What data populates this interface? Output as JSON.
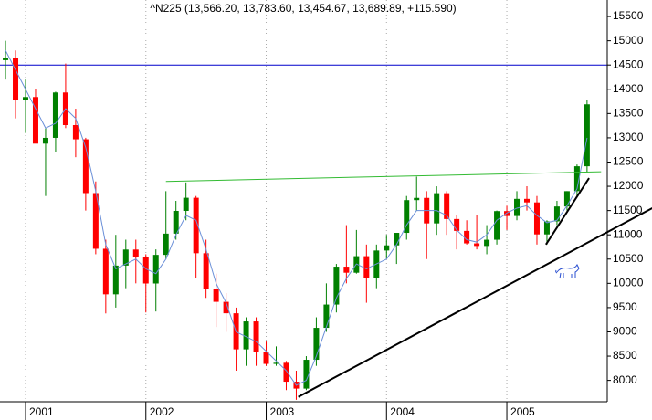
{
  "chart_data": {
    "type": "candlestick",
    "title": "^N225 (13,566.20, 13,783.60, 13,454.67, 13,689.89, +115.590)",
    "categories": [
      null,
      null,
      "2001",
      null,
      null,
      null,
      null,
      null,
      null,
      null,
      null,
      null,
      null,
      null,
      "2002",
      null,
      null,
      null,
      null,
      null,
      null,
      null,
      null,
      null,
      null,
      null,
      "2003",
      null,
      null,
      null,
      null,
      null,
      null,
      null,
      null,
      null,
      null,
      null,
      "2004",
      null,
      null,
      null,
      null,
      null,
      null,
      null,
      null,
      null,
      null,
      null,
      "2005",
      null,
      null,
      null,
      null,
      null,
      null,
      null,
      null
    ],
    "open": [
      14600,
      14650,
      13785,
      13840,
      12880,
      12999,
      13934,
      13262,
      12969,
      11860,
      10713,
      9774,
      10366,
      10697,
      10543,
      9997,
      10587,
      11025,
      11493,
      11764,
      10621,
      9877,
      9619,
      9383,
      8640,
      9215,
      8579,
      8340,
      8363,
      7973,
      7831,
      8425,
      9083,
      9563,
      10344,
      10219,
      10560,
      10101,
      10677,
      10783,
      11041,
      11715,
      11761,
      11236,
      11858,
      11326,
      11081,
      10824,
      10771,
      10899,
      11489,
      11388,
      11741,
      11668,
      11009,
      11277,
      11584,
      11900,
      12413
    ],
    "high": [
      15000,
      14800,
      14200,
      14000,
      13200,
      13950,
      14530,
      13600,
      13000,
      12100,
      10900,
      11000,
      10900,
      10900,
      10600,
      10700,
      11900,
      11700,
      12080,
      11800,
      10900,
      10200,
      9800,
      9500,
      9300,
      9300,
      8800,
      8700,
      8400,
      8200,
      8500,
      9300,
      10000,
      10400,
      11200,
      11100,
      10800,
      10800,
      11000,
      11000,
      11800,
      12200,
      11900,
      12000,
      11900,
      11400,
      11300,
      11400,
      11200,
      11500,
      11600,
      11900,
      12000,
      11800,
      11300,
      11700,
      11900,
      12450,
      13784
    ],
    "low": [
      14200,
      13400,
      13100,
      12900,
      11800,
      12700,
      13200,
      12600,
      11500,
      10600,
      9380,
      9500,
      9900,
      10000,
      9400,
      9420,
      10500,
      10900,
      11300,
      10100,
      9700,
      9100,
      9000,
      8200,
      8300,
      8300,
      8300,
      8300,
      7800,
      7600,
      7800,
      8300,
      9000,
      9400,
      10000,
      10200,
      9600,
      9900,
      10500,
      10400,
      10900,
      11500,
      10500,
      11000,
      11000,
      10700,
      10800,
      10700,
      10600,
      10800,
      11100,
      11300,
      11500,
      10800,
      10800,
      11200,
      11500,
      11800,
      12300
    ],
    "close": [
      14650,
      13785,
      13840,
      12880,
      12999,
      13934,
      13262,
      12969,
      11860,
      10713,
      9774,
      10366,
      10697,
      10543,
      9997,
      10587,
      11025,
      11493,
      11764,
      10621,
      9877,
      9619,
      9383,
      8640,
      9215,
      8579,
      8340,
      8363,
      7973,
      7831,
      8425,
      9083,
      9563,
      10344,
      10219,
      10560,
      10101,
      10677,
      10783,
      11041,
      11715,
      11761,
      11236,
      11858,
      11326,
      11081,
      10824,
      10771,
      10899,
      11489,
      11388,
      11741,
      11668,
      11009,
      11277,
      11584,
      11900,
      12413,
      13690
    ],
    "up_color": "#008000",
    "down_color": "#ff0000",
    "moving_average": {
      "color": "#6a8fd8",
      "values": [
        14800,
        14400,
        14000,
        13600,
        13200,
        13300,
        13600,
        13400,
        12800,
        11900,
        10800,
        10300,
        10400,
        10500,
        10300,
        10200,
        10500,
        11000,
        11400,
        11300,
        10700,
        10000,
        9600,
        9000,
        8900,
        8800,
        8600,
        8400,
        8200,
        7900,
        8000,
        8500,
        9100,
        9700,
        10100,
        10400,
        10300,
        10400,
        10500,
        10800,
        11200,
        11500,
        11500,
        11500,
        11400,
        11100,
        10900,
        10850,
        11000,
        11300,
        11450,
        11550,
        11600,
        11400,
        11250,
        11300,
        11600,
        11950,
        13000
      ]
    },
    "hlines": [
      {
        "value": 14500,
        "color": "#0000cc"
      }
    ],
    "lines": [
      {
        "color": "#33bb33",
        "x": [
          16,
          59.4
        ],
        "y": [
          12100,
          12300
        ]
      },
      {
        "color": "#000000",
        "x": [
          29.2,
          64.5
        ],
        "y": [
          7660,
          11550
        ]
      },
      {
        "color": "#000000",
        "x": [
          53.9,
          58.2
        ],
        "y": [
          10800,
          12170
        ]
      }
    ],
    "ylim": [
      7560,
      15840
    ],
    "yticks": [
      8000,
      8500,
      9000,
      9500,
      10000,
      10500,
      11000,
      11500,
      12000,
      12500,
      13000,
      13500,
      14000,
      14500,
      15000,
      15500
    ],
    "grid": true
  }
}
